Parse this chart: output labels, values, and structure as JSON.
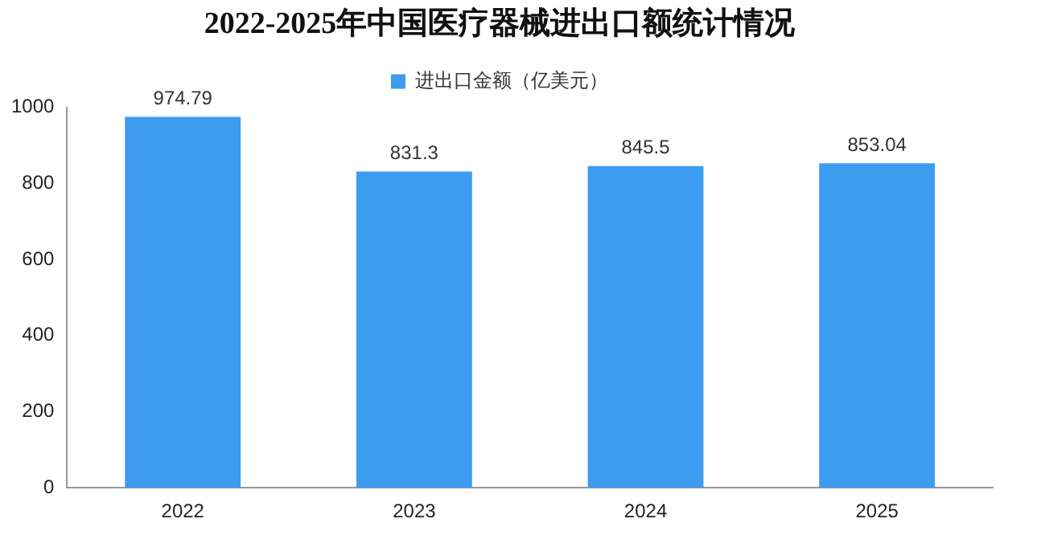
{
  "chart_data": {
    "type": "bar",
    "title": "2022-2025年中国医疗器械进出口额统计情况",
    "categories": [
      "2022",
      "2023",
      "2024",
      "2025"
    ],
    "series": [
      {
        "name": "进出口金额（亿美元）",
        "color": "#3d9bf0",
        "values": [
          974.79,
          831.3,
          845.5,
          853.04
        ]
      }
    ],
    "ylim": [
      0,
      1000
    ],
    "yticks": [
      0,
      200,
      400,
      600,
      800,
      1000
    ],
    "grid": false,
    "legend": "top",
    "data_labels": true
  }
}
